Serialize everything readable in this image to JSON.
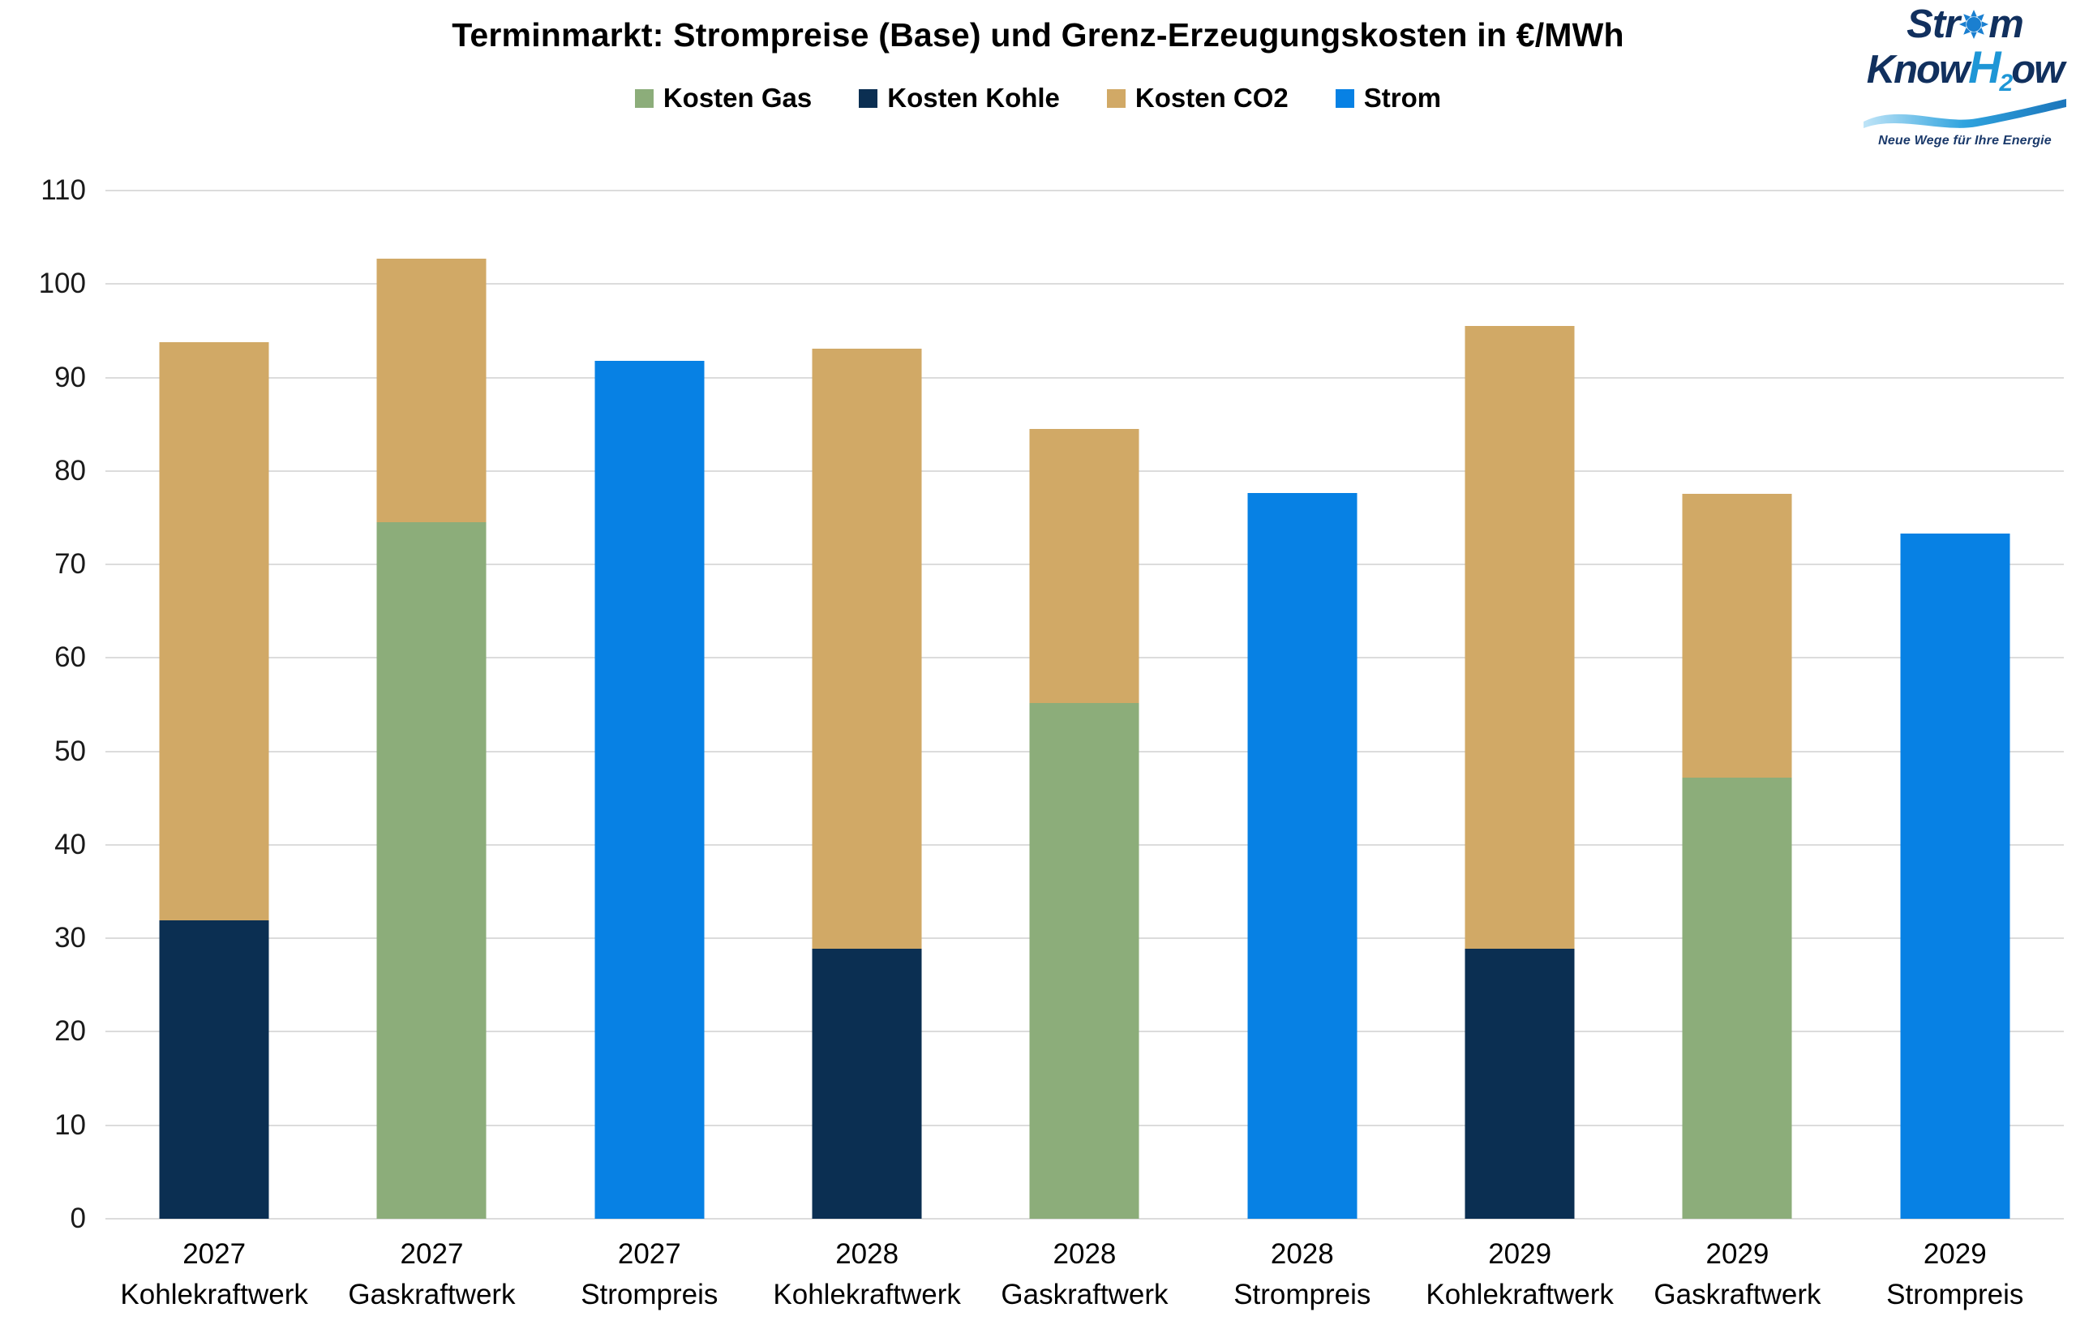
{
  "title": "Terminmarkt: Strompreise (Base) und Grenz-Erzeugungskosten in €/MWh",
  "logo": {
    "word1_pre": "Str",
    "word1_post": "m",
    "word2_pre": "Know",
    "word2_h": "H",
    "word2_sub": "2",
    "word2_post": "ow",
    "tagline": "Neue Wege für Ihre Energie"
  },
  "chart_data": {
    "type": "bar",
    "stacked": true,
    "title": "Terminmarkt: Strompreise (Base) und Grenz-Erzeugungskosten in €/MWh",
    "xlabel": "",
    "ylabel": "",
    "ylim": [
      0,
      110
    ],
    "ytick_step": 10,
    "grid": true,
    "legend_position": "top-center",
    "gridline_color": "#dcdcdc",
    "categories": [
      [
        "2027",
        "Kohlekraftwerk"
      ],
      [
        "2027",
        "Gaskraftwerk"
      ],
      [
        "2027",
        "Strompreis"
      ],
      [
        "2028",
        "Kohlekraftwerk"
      ],
      [
        "2028",
        "Gaskraftwerk"
      ],
      [
        "2028",
        "Strompreis"
      ],
      [
        "2029",
        "Kohlekraftwerk"
      ],
      [
        "2029",
        "Gaskraftwerk"
      ],
      [
        "2029",
        "Strompreis"
      ]
    ],
    "series": [
      {
        "name": "Kosten Gas",
        "color": "#8cad7a",
        "values": [
          0,
          74.5,
          0,
          0,
          55.2,
          0,
          0,
          47.2,
          0
        ]
      },
      {
        "name": "Kosten Kohle",
        "color": "#0b2f52",
        "values": [
          31.9,
          0,
          0,
          28.9,
          0,
          0,
          28.9,
          0,
          0
        ]
      },
      {
        "name": "Kosten CO2",
        "color": "#d1a966",
        "values": [
          61.9,
          28.2,
          0,
          64.2,
          29.3,
          0,
          66.6,
          30.4,
          0
        ]
      },
      {
        "name": "Strom",
        "color": "#0781e4",
        "values": [
          0,
          0,
          91.8,
          0,
          0,
          77.6,
          0,
          0,
          73.3
        ]
      }
    ],
    "stack_totals": [
      93.8,
      102.7,
      91.8,
      93.1,
      84.5,
      77.6,
      95.5,
      77.6,
      73.3
    ]
  }
}
